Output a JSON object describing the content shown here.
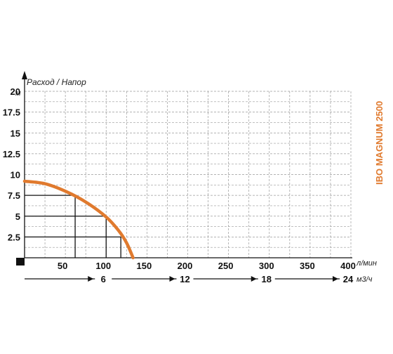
{
  "chart_data": {
    "type": "line",
    "axis_title": "Расход / Напор",
    "y_unit": "м",
    "y_ticks": [
      "2.5",
      "5",
      "7.5",
      "10",
      "12.5",
      "15",
      "17.5",
      "20"
    ],
    "y_tick_values": [
      2.5,
      5,
      7.5,
      10,
      12.5,
      15,
      17.5,
      20
    ],
    "ylim": [
      0,
      20
    ],
    "x_unit": "л/мин",
    "x_ticks": [
      "50",
      "100",
      "150",
      "200",
      "250",
      "300",
      "350",
      "400"
    ],
    "x_tick_values": [
      50,
      100,
      150,
      200,
      250,
      300,
      350,
      400
    ],
    "xlim": [
      0,
      400
    ],
    "x2_unit": "м3/ч",
    "x2_ticks": [
      "6",
      "12",
      "18",
      "24"
    ],
    "x2_tick_values": [
      6,
      12,
      18,
      24
    ],
    "grid": true,
    "series": [
      {
        "name": "IBO MAGNUM 2500",
        "color": "#e07a2e",
        "x": [
          0,
          25,
          50,
          75,
          100,
          115,
          125,
          133
        ],
        "y": [
          9.2,
          8.9,
          8.0,
          6.7,
          4.9,
          3.3,
          1.8,
          0
        ]
      }
    ],
    "reference_points": [
      {
        "x": 62,
        "y": 7.5
      },
      {
        "x": 100,
        "y": 5
      },
      {
        "x": 118,
        "y": 2.5
      }
    ]
  }
}
